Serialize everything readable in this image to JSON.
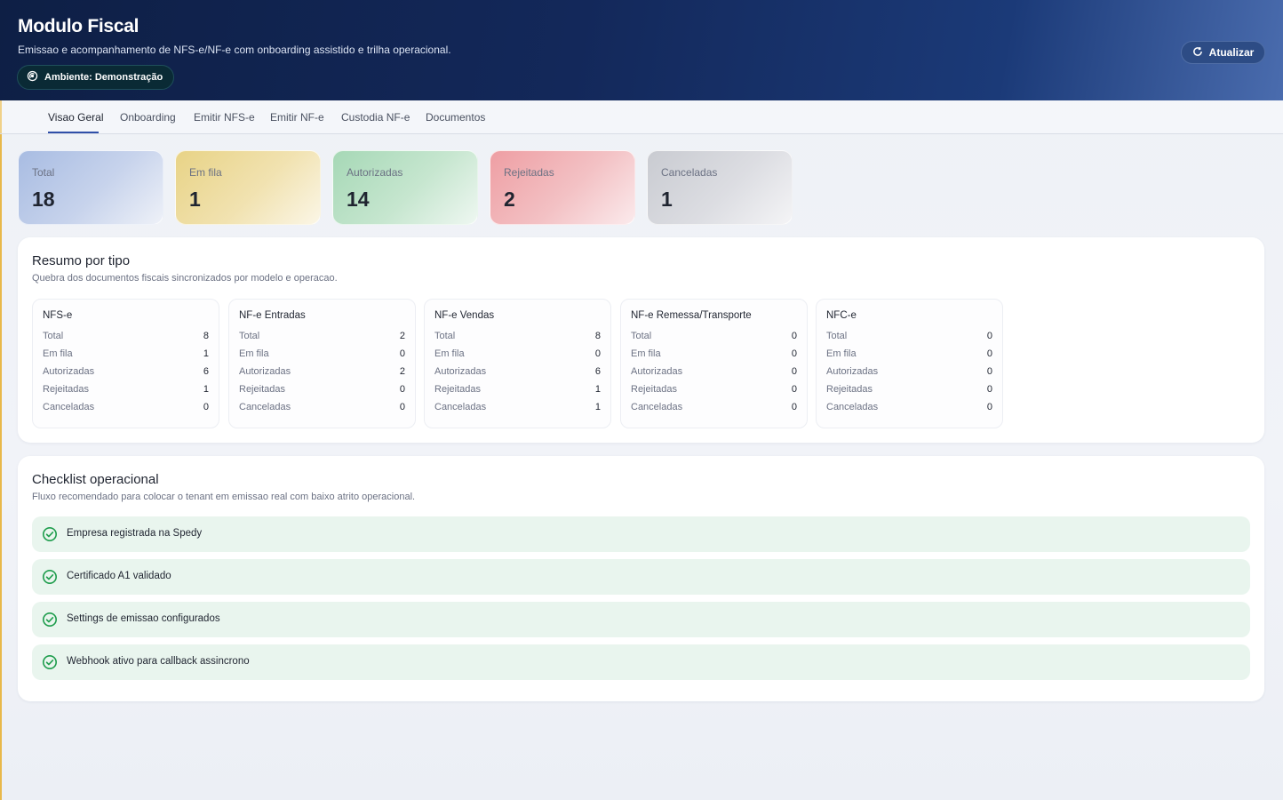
{
  "header": {
    "title": "Modulo Fiscal",
    "subtitle": "Emissao e acompanhamento de NFS-e/NF-e com onboarding assistido e trilha operacional.",
    "environment_label": "Ambiente: Demonstração",
    "refresh_label": "Atualizar"
  },
  "tabs": [
    {
      "label": "Visao Geral",
      "active": true
    },
    {
      "label": "Onboarding",
      "active": false
    },
    {
      "label": "Emitir NFS-e",
      "active": false
    },
    {
      "label": "Emitir NF-e",
      "active": false
    },
    {
      "label": "Custodia NF-e",
      "active": false
    },
    {
      "label": "Documentos",
      "active": false
    }
  ],
  "stats": [
    {
      "label": "Total",
      "value": "18"
    },
    {
      "label": "Em fila",
      "value": "1"
    },
    {
      "label": "Autorizadas",
      "value": "14"
    },
    {
      "label": "Rejeitadas",
      "value": "2"
    },
    {
      "label": "Canceladas",
      "value": "1"
    }
  ],
  "resumo": {
    "title": "Resumo por tipo",
    "subtitle": "Quebra dos documentos fiscais sincronizados por modelo e operacao.",
    "row_labels": [
      "Total",
      "Em fila",
      "Autorizadas",
      "Rejeitadas",
      "Canceladas"
    ],
    "types": [
      {
        "name": "NFS-e",
        "values": [
          "8",
          "1",
          "6",
          "1",
          "0"
        ]
      },
      {
        "name": "NF-e Entradas",
        "values": [
          "2",
          "0",
          "2",
          "0",
          "0"
        ]
      },
      {
        "name": "NF-e Vendas",
        "values": [
          "8",
          "0",
          "6",
          "1",
          "1"
        ]
      },
      {
        "name": "NF-e Remessa/Transporte",
        "values": [
          "0",
          "0",
          "0",
          "0",
          "0"
        ]
      },
      {
        "name": "NFC-e",
        "values": [
          "0",
          "0",
          "0",
          "0",
          "0"
        ]
      }
    ]
  },
  "checklist": {
    "title": "Checklist operacional",
    "subtitle": "Fluxo recomendado para colocar o tenant em emissao real com baixo atrito operacional.",
    "items": [
      {
        "label": "Empresa registrada na Spedy",
        "done": true
      },
      {
        "label": "Certificado A1 validado",
        "done": true
      },
      {
        "label": "Settings de emissao configurados",
        "done": true
      },
      {
        "label": "Webhook ativo para callback assincrono",
        "done": true
      }
    ]
  },
  "colors": {
    "accent": "#2f4fa8",
    "success": "#1f9d4d",
    "header_dark": "#0e1f45"
  },
  "icons": {
    "environment": "broadcast-icon",
    "refresh": "refresh-icon",
    "check": "check-circle-icon"
  }
}
